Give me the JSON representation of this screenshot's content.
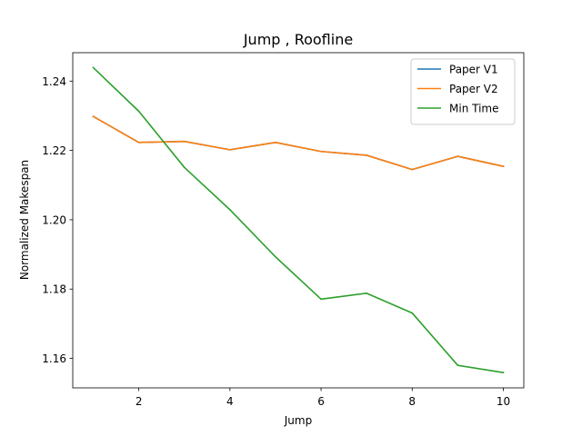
{
  "chart_data": {
    "type": "line",
    "title": "Jump , Roofline",
    "xlabel": "Jump",
    "ylabel": "Normalized Makespan",
    "xlim": [
      0.55,
      10.45
    ],
    "ylim": [
      1.1515,
      1.2482
    ],
    "xticks": [
      2,
      4,
      6,
      8,
      10
    ],
    "xtick_labels": [
      "2",
      "4",
      "6",
      "8",
      "10"
    ],
    "yticks": [
      1.16,
      1.18,
      1.2,
      1.22,
      1.24
    ],
    "ytick_labels": [
      "1.16",
      "1.18",
      "1.20",
      "1.22",
      "1.24"
    ],
    "grid": false,
    "legend_position": "top-right",
    "x": [
      1,
      2,
      3,
      4,
      5,
      6,
      7,
      8,
      9,
      10
    ],
    "series": [
      {
        "name": "Paper V1",
        "color": "#1f77b4",
        "values": [
          1.2298,
          1.2223,
          1.2226,
          1.2202,
          1.2223,
          1.2197,
          1.2186,
          1.2145,
          1.2183,
          1.2154
        ]
      },
      {
        "name": "Paper V2",
        "color": "#ff7f0e",
        "values": [
          1.2298,
          1.2223,
          1.2226,
          1.2202,
          1.2223,
          1.2197,
          1.2186,
          1.2145,
          1.2183,
          1.2154
        ]
      },
      {
        "name": "Min Time",
        "color": "#2ca02c",
        "values": [
          1.2439,
          1.2313,
          1.2151,
          1.2029,
          1.1893,
          1.1771,
          1.1788,
          1.1731,
          1.158,
          1.1559
        ]
      }
    ]
  }
}
